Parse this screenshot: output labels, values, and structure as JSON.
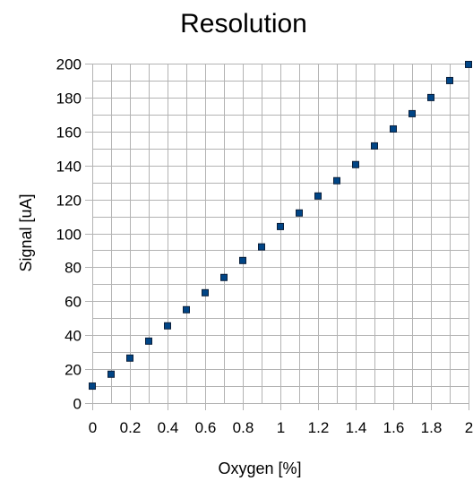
{
  "chart_data": {
    "type": "scatter",
    "title": "Resolution",
    "xlabel": "Oxygen [%]",
    "ylabel": "Signal [uA]",
    "xlim": [
      0,
      2
    ],
    "ylim": [
      0,
      200
    ],
    "x_ticks": [
      0,
      0.2,
      0.4,
      0.6,
      0.8,
      1,
      1.2,
      1.4,
      1.6,
      1.8,
      2
    ],
    "y_ticks": [
      0,
      20,
      40,
      60,
      80,
      100,
      120,
      140,
      160,
      180,
      200
    ],
    "x_tick_labels": [
      "0",
      "0.2",
      "0.4",
      "0.6",
      "0.8",
      "1",
      "1.2",
      "1.4",
      "1.6",
      "1.8",
      "2"
    ],
    "y_tick_labels": [
      "0",
      "20",
      "40",
      "60",
      "80",
      "100",
      "120",
      "140",
      "160",
      "180",
      "200"
    ],
    "x_minor_step": 0.1,
    "y_minor_step": 10,
    "grid": true,
    "legend": false,
    "marker_color": "#004586",
    "series": [
      {
        "x": [
          0,
          0.1,
          0.2,
          0.3,
          0.4,
          0.5,
          0.6,
          0.7,
          0.8,
          0.9,
          1.0,
          1.1,
          1.2,
          1.3,
          1.4,
          1.5,
          1.6,
          1.7,
          1.8,
          1.9,
          2.0
        ],
        "y": [
          10,
          17,
          26.5,
          36.5,
          45.5,
          55,
          65,
          74,
          84,
          92,
          104,
          112,
          122,
          131,
          140.5,
          151.5,
          161.5,
          170.5,
          180,
          190,
          199.5
        ]
      }
    ]
  }
}
